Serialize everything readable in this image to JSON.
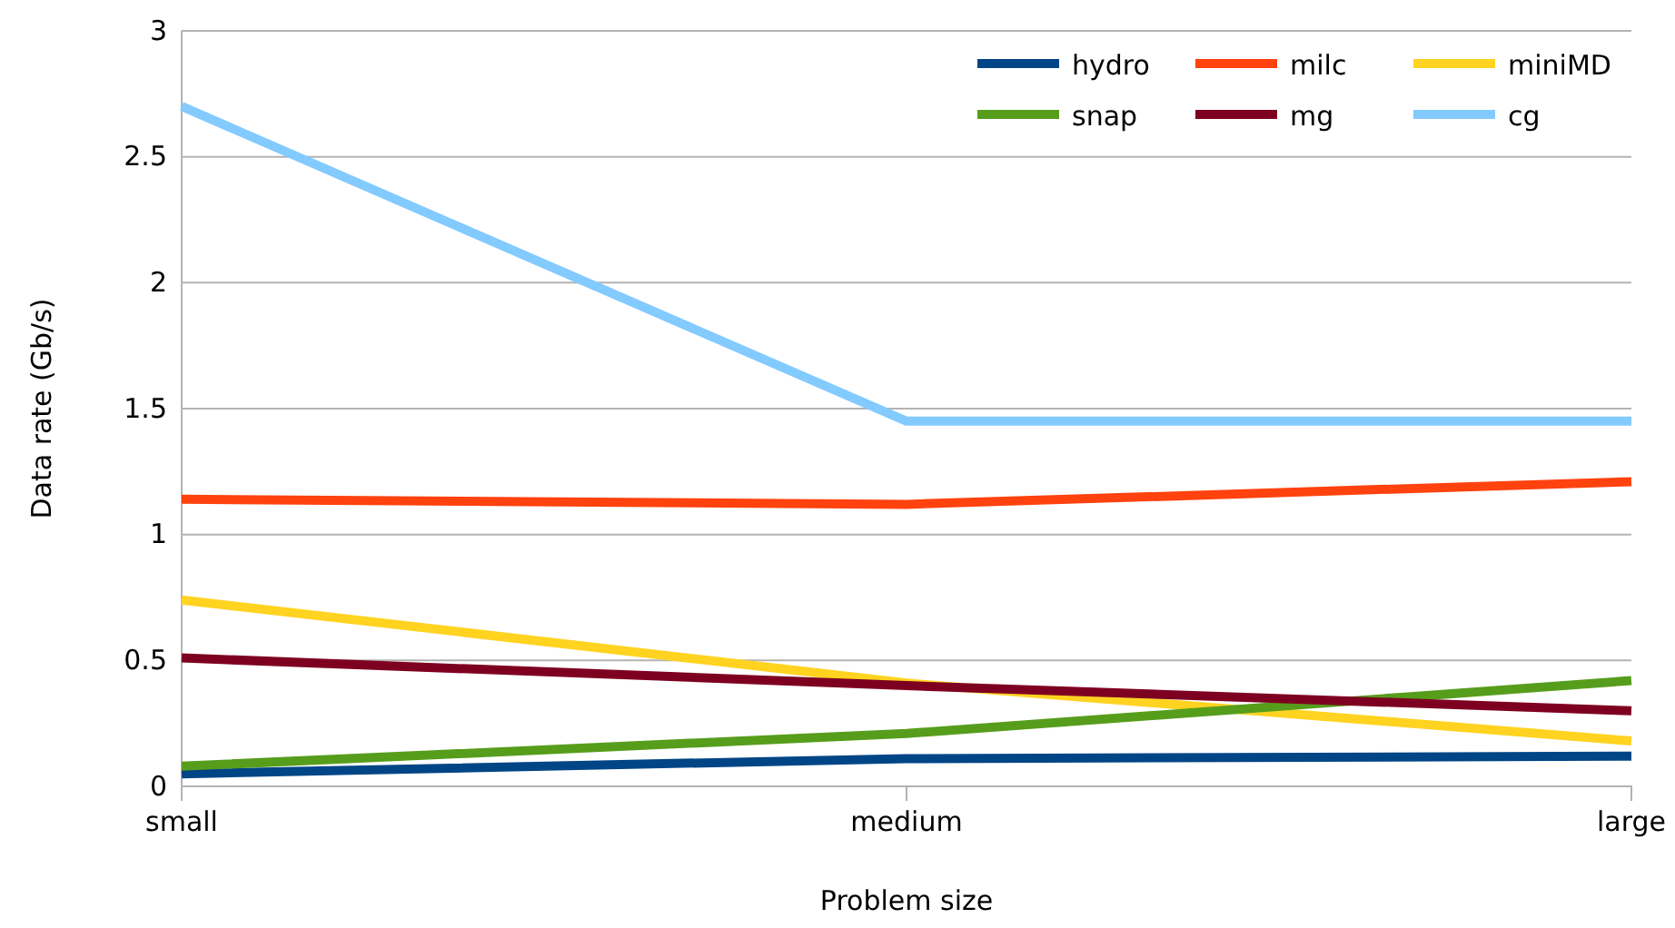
{
  "chart_data": {
    "type": "line",
    "xlabel": "Problem size",
    "ylabel": "Data rate (Gb/s)",
    "categories": [
      "small",
      "medium",
      "large"
    ],
    "ylim": [
      0,
      3
    ],
    "yticks": [
      0,
      0.5,
      1,
      1.5,
      2,
      2.5,
      3
    ],
    "grid": "y",
    "legend": "top right",
    "marker": "none",
    "line_style": "solid",
    "series": [
      {
        "name": "hydro",
        "color": "#004586",
        "values": [
          0.05,
          0.11,
          0.12
        ]
      },
      {
        "name": "milc",
        "color": "#ff420e",
        "values": [
          1.14,
          1.12,
          1.21
        ]
      },
      {
        "name": "miniMD",
        "color": "#ffd320",
        "values": [
          0.74,
          0.41,
          0.18
        ]
      },
      {
        "name": "snap",
        "color": "#579d1c",
        "values": [
          0.08,
          0.21,
          0.42
        ]
      },
      {
        "name": "mg",
        "color": "#7e0021",
        "values": [
          0.51,
          0.4,
          0.3
        ]
      },
      {
        "name": "cg",
        "color": "#83caff",
        "values": [
          2.7,
          1.45,
          1.45
        ]
      }
    ]
  }
}
